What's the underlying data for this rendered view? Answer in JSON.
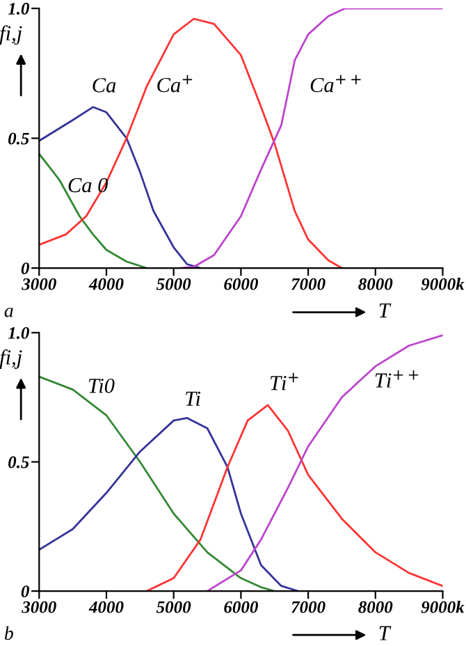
{
  "chart_data": [
    {
      "type": "line",
      "xlabel": "T",
      "ylabel": "fi,j",
      "annotations": [
        "a"
      ],
      "xlim": [
        3000,
        9000
      ],
      "ylim": [
        0,
        1
      ],
      "xticks": [
        3000,
        4000,
        5000,
        6000,
        7000,
        8000,
        {
          "value": 9000,
          "label": "9000k"
        }
      ],
      "yticks": [
        0,
        0.5,
        {
          "value": 1,
          "label": "1.0"
        }
      ],
      "grid": false,
      "legend": false,
      "series": [
        {
          "name": "Ca",
          "color": "#333399",
          "x": [
            3000,
            3500,
            3800,
            4000,
            4300,
            4500,
            4700,
            5000,
            5200,
            5400
          ],
          "values": [
            0.49,
            0.57,
            0.62,
            0.6,
            0.5,
            0.37,
            0.22,
            0.08,
            0.015,
            0
          ]
        },
        {
          "name": "Ca 0",
          "color": "#338833",
          "x": [
            3000,
            3300,
            3600,
            3800,
            4000,
            4300,
            4600
          ],
          "values": [
            0.44,
            0.34,
            0.2,
            0.13,
            0.07,
            0.025,
            0
          ]
        },
        {
          "name": "Ca$^{+}$",
          "color": "#ff3333",
          "x": [
            3000,
            3400,
            3700,
            4000,
            4300,
            4600,
            5000,
            5300,
            5600,
            6000,
            6300,
            6500,
            6800,
            7000,
            7300,
            7500
          ],
          "values": [
            0.09,
            0.13,
            0.2,
            0.33,
            0.5,
            0.7,
            0.9,
            0.96,
            0.94,
            0.82,
            0.62,
            0.48,
            0.22,
            0.11,
            0.03,
            0
          ]
        },
        {
          "name": "Ca$^{++}$",
          "color": "#bb44cc",
          "x": [
            5100,
            5300,
            5600,
            6000,
            6300,
            6600,
            6800,
            7000,
            7300,
            7550,
            9000
          ],
          "values": [
            0,
            0.005,
            0.05,
            0.2,
            0.38,
            0.55,
            0.8,
            0.9,
            0.97,
            1,
            1
          ]
        }
      ]
    },
    {
      "type": "line",
      "xlabel": "T",
      "ylabel": "fi,j",
      "annotations": [
        "b"
      ],
      "xlim": [
        3000,
        9000
      ],
      "ylim": [
        0,
        1
      ],
      "xticks": [
        3000,
        4000,
        5000,
        6000,
        7000,
        8000,
        {
          "value": 9000,
          "label": "9000k"
        }
      ],
      "yticks": [
        0,
        0.5,
        {
          "value": 1,
          "label": "1.0"
        }
      ],
      "grid": false,
      "legend": false,
      "series": [
        {
          "name": "Ti0",
          "color": "#338833",
          "x": [
            3000,
            3500,
            4000,
            4500,
            5000,
            5500,
            6000,
            6300,
            6500
          ],
          "values": [
            0.83,
            0.78,
            0.68,
            0.5,
            0.3,
            0.15,
            0.05,
            0.015,
            0
          ]
        },
        {
          "name": "Ti",
          "color": "#333399",
          "x": [
            3000,
            3500,
            4000,
            4500,
            5000,
            5200,
            5500,
            5800,
            6000,
            6300,
            6600,
            6850
          ],
          "values": [
            0.16,
            0.24,
            0.38,
            0.54,
            0.66,
            0.67,
            0.63,
            0.48,
            0.3,
            0.1,
            0.02,
            0
          ]
        },
        {
          "name": "Ti$^{+}$",
          "color": "#ff3333",
          "x": [
            4600,
            5000,
            5400,
            5800,
            6100,
            6400,
            6700,
            7000,
            7500,
            8000,
            8500,
            9000
          ],
          "values": [
            0,
            0.05,
            0.2,
            0.48,
            0.66,
            0.72,
            0.62,
            0.45,
            0.28,
            0.15,
            0.07,
            0.02
          ]
        },
        {
          "name": "Ti$^{++}$",
          "color": "#bb44cc",
          "x": [
            5500,
            6000,
            6300,
            6700,
            7000,
            7500,
            8000,
            8500,
            9000
          ],
          "values": [
            0,
            0.08,
            0.2,
            0.4,
            0.56,
            0.75,
            0.87,
            0.95,
            0.99
          ]
        }
      ]
    }
  ]
}
